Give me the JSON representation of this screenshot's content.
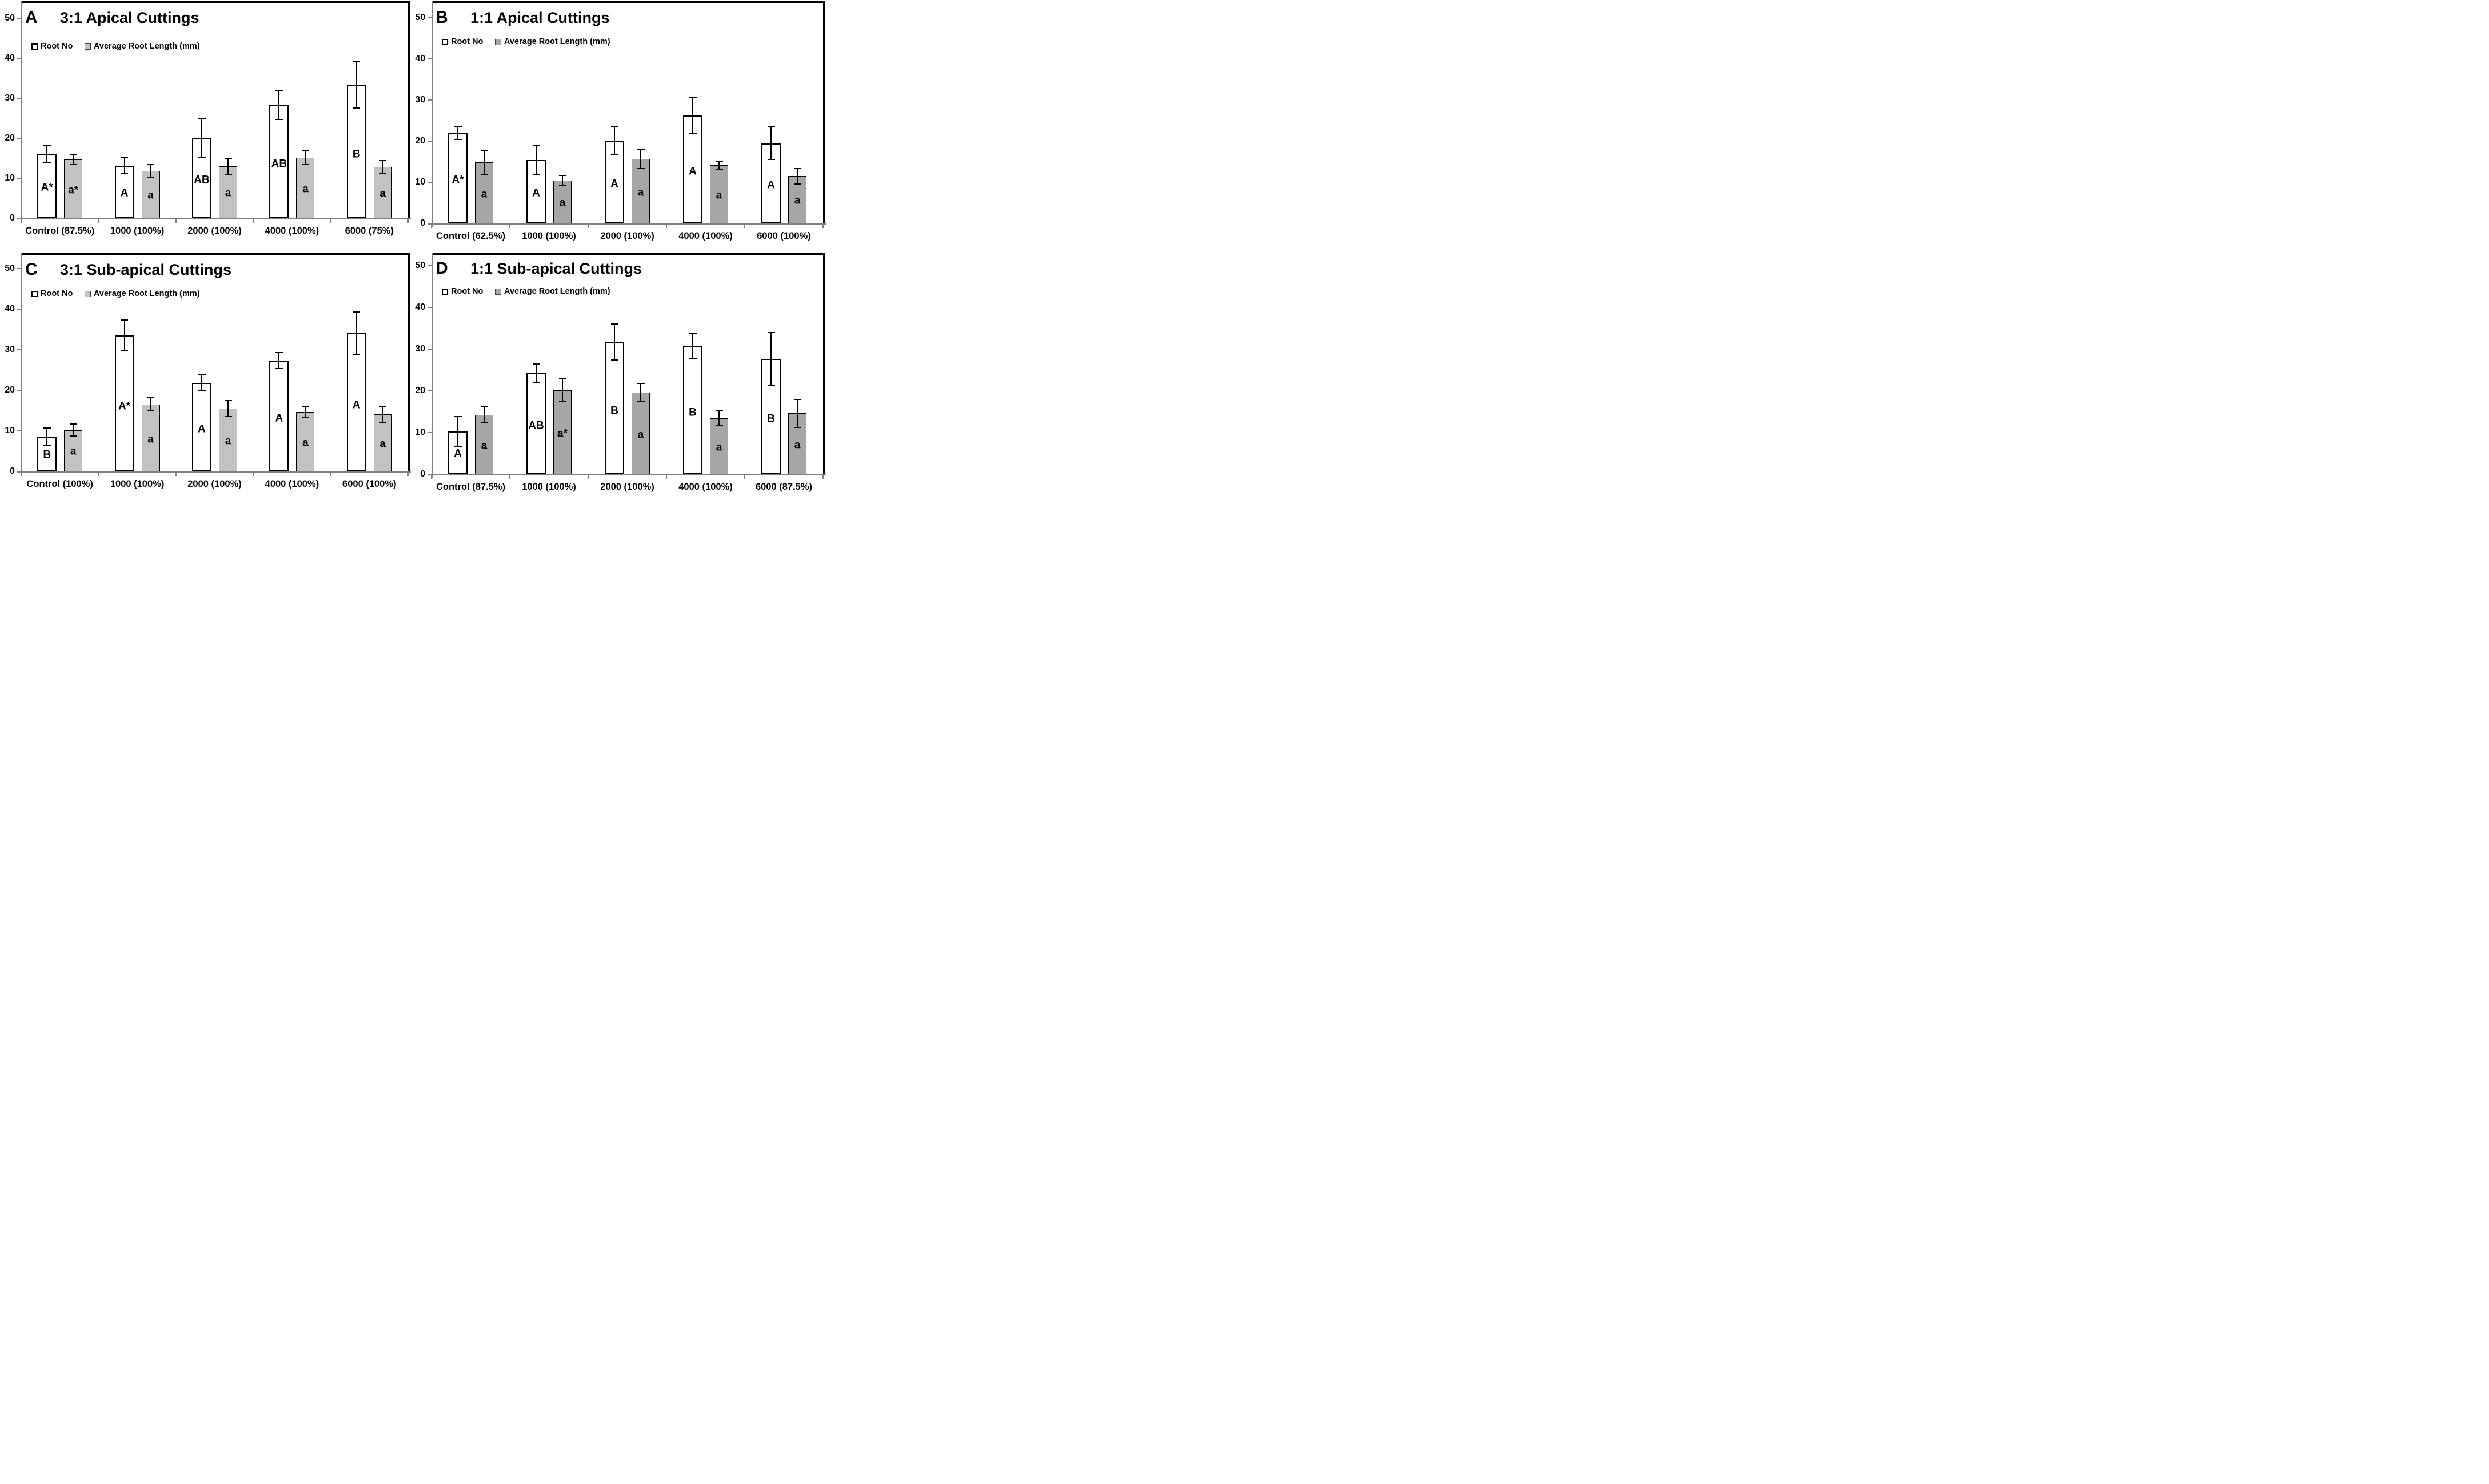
{
  "figure": {
    "description": "Four-panel bar chart comparing Root No and Average Root Length for apical and sub-apical cuttings"
  },
  "colors": {
    "axis": "#808080",
    "frame": "#000000",
    "background": "#ffffff",
    "root_no_fill": "#ffffff",
    "gray_fill_left_column": "#c2c2c2",
    "gray_fill_right_column": "#a6a6a6"
  },
  "chart_data": [
    {
      "panel_letter": "A",
      "title": "3:1 Apical Cuttings",
      "type": "bar",
      "ylim": [
        0,
        50
      ],
      "yticks": [
        0,
        10,
        20,
        30,
        40,
        50
      ],
      "grid": false,
      "legend_position": "top-left-inside",
      "categories": [
        "Control (87.5%)",
        "1000 (100%)",
        "2000 (100%)",
        "4000 (100%)",
        "6000 (75%)"
      ],
      "series": [
        {
          "name": "Root No",
          "fill": "#ffffff",
          "border": "#000000",
          "values": [
            16.0,
            13.2,
            20.0,
            28.3,
            33.4
          ],
          "errors": [
            2.2,
            1.9,
            4.8,
            3.6,
            5.8
          ],
          "letters": [
            "A*",
            "A",
            "AB",
            "AB",
            "B"
          ]
        },
        {
          "name": "Average Root Length (mm)",
          "fill": "#c2c2c2",
          "border": "#000000",
          "values": [
            14.7,
            11.8,
            13.0,
            15.1,
            12.9
          ],
          "errors": [
            1.3,
            1.7,
            2.0,
            1.7,
            1.6
          ],
          "letters": [
            "a*",
            "a",
            "a",
            "a",
            "a"
          ]
        }
      ]
    },
    {
      "panel_letter": "B",
      "title": "1:1 Apical Cuttings",
      "type": "bar",
      "ylim": [
        0,
        50
      ],
      "yticks": [
        0,
        10,
        20,
        30,
        40,
        50
      ],
      "grid": false,
      "legend_position": "top-left-inside",
      "categories": [
        "Control (62.5%)",
        "1000 (100%)",
        "2000 (100%)",
        "4000 (100%)",
        "6000 (100%)"
      ],
      "series": [
        {
          "name": "Root No",
          "fill": "#ffffff",
          "border": "#000000",
          "values": [
            22.0,
            15.4,
            20.1,
            26.3,
            19.5
          ],
          "errors": [
            1.6,
            3.6,
            3.5,
            4.4,
            4.0
          ],
          "letters": [
            "A*",
            "A",
            "A",
            "A",
            "A"
          ]
        },
        {
          "name": "Average Root Length (mm)",
          "fill": "#a6a6a6",
          "border": "#000000",
          "values": [
            14.8,
            10.4,
            15.7,
            14.2,
            11.5
          ],
          "errors": [
            2.9,
            1.2,
            2.4,
            1.0,
            1.9
          ],
          "letters": [
            "a",
            "a",
            "a",
            "a",
            "a"
          ]
        }
      ]
    },
    {
      "panel_letter": "C",
      "title": "3:1 Sub-apical Cuttings",
      "type": "bar",
      "ylim": [
        0,
        50
      ],
      "yticks": [
        0,
        10,
        20,
        30,
        40,
        50
      ],
      "grid": false,
      "legend_position": "top-left-inside",
      "categories": [
        "Control (100%)",
        "1000 (100%)",
        "2000 (100%)",
        "4000 (100%)",
        "6000 (100%)"
      ],
      "series": [
        {
          "name": "Root No",
          "fill": "#ffffff",
          "border": "#000000",
          "values": [
            8.5,
            33.5,
            21.8,
            27.3,
            34.1
          ],
          "errors": [
            2.2,
            3.8,
            2.0,
            2.0,
            5.2
          ],
          "letters": [
            "B",
            "A*",
            "A",
            "A",
            "A"
          ]
        },
        {
          "name": "Average Root Length (mm)",
          "fill": "#c2c2c2",
          "border": "#000000",
          "values": [
            10.2,
            16.5,
            15.5,
            14.6,
            14.1
          ],
          "errors": [
            1.5,
            1.6,
            2.0,
            1.4,
            2.0
          ],
          "letters": [
            "a",
            "a",
            "a",
            "a",
            "a"
          ]
        }
      ]
    },
    {
      "panel_letter": "D",
      "title": "1:1 Sub-apical Cuttings",
      "type": "bar",
      "ylim": [
        0,
        50
      ],
      "yticks": [
        0,
        10,
        20,
        30,
        40,
        50
      ],
      "grid": false,
      "legend_position": "top-left-inside",
      "categories": [
        "Control (87.5%)",
        "1000 (100%)",
        "2000 (100%)",
        "4000 (100%)",
        "6000 (87.5%)"
      ],
      "series": [
        {
          "name": "Root No",
          "fill": "#ffffff",
          "border": "#000000",
          "values": [
            10.3,
            24.3,
            31.7,
            30.8,
            27.7
          ],
          "errors": [
            3.6,
            2.2,
            4.3,
            3.0,
            6.3
          ],
          "letters": [
            "A",
            "AB",
            "B",
            "B",
            "B"
          ]
        },
        {
          "name": "Average Root Length (mm)",
          "fill": "#a6a6a6",
          "border": "#000000",
          "values": [
            14.3,
            20.2,
            19.6,
            13.4,
            14.6
          ],
          "errors": [
            1.8,
            2.7,
            2.2,
            1.8,
            3.3
          ],
          "letters": [
            "a",
            "a*",
            "a",
            "a",
            "a"
          ]
        }
      ]
    }
  ]
}
